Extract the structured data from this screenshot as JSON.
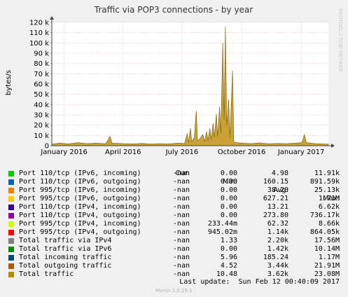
{
  "chart_data": {
    "type": "area",
    "title": "Traffic via POP3 connections - by year",
    "ylabel": "bytes/s",
    "watermark": "RRDTOOL / TOBI OETIKER",
    "ylim": [
      0,
      120000
    ],
    "y_ticks": [
      {
        "value": 0,
        "label": "0"
      },
      {
        "value": 10000,
        "label": "10 k"
      },
      {
        "value": 20000,
        "label": "20 k"
      },
      {
        "value": 30000,
        "label": "30 k"
      },
      {
        "value": 40000,
        "label": "40 k"
      },
      {
        "value": 50000,
        "label": "50 k"
      },
      {
        "value": 60000,
        "label": "60 k"
      },
      {
        "value": 70000,
        "label": "70 k"
      },
      {
        "value": 80000,
        "label": "80 k"
      },
      {
        "value": 90000,
        "label": "90 k"
      },
      {
        "value": 100000,
        "label": "100 k"
      },
      {
        "value": 110000,
        "label": "110 k"
      },
      {
        "value": 120000,
        "label": "120 k"
      }
    ],
    "xlim": [
      "2015-12-13",
      "2017-02-12"
    ],
    "x_ticks": [
      {
        "value": "2016-01-01",
        "label": "January 2016"
      },
      {
        "value": "2016-04-01",
        "label": "April 2016"
      },
      {
        "value": "2016-07-01",
        "label": "July 2016"
      },
      {
        "value": "2016-10-01",
        "label": "October 2016"
      },
      {
        "value": "2017-01-01",
        "label": "January 2017"
      }
    ],
    "grid": true,
    "series": [
      {
        "name": "Total traffic",
        "color": "#c09010",
        "points": [
          [
            "2015-12-13",
            1500
          ],
          [
            "2015-12-25",
            2500
          ],
          [
            "2016-01-08",
            1800
          ],
          [
            "2016-01-22",
            3000
          ],
          [
            "2016-02-05",
            2000
          ],
          [
            "2016-02-19",
            2500
          ],
          [
            "2016-03-05",
            1900
          ],
          [
            "2016-03-12",
            9000
          ],
          [
            "2016-03-15",
            2500
          ],
          [
            "2016-04-02",
            2000
          ],
          [
            "2016-04-16",
            1800
          ],
          [
            "2016-04-30",
            2200
          ],
          [
            "2016-05-14",
            1700
          ],
          [
            "2016-05-28",
            2000
          ],
          [
            "2016-06-11",
            1800
          ],
          [
            "2016-06-25",
            2500
          ],
          [
            "2016-07-05",
            2200
          ],
          [
            "2016-07-09",
            12000
          ],
          [
            "2016-07-11",
            3000
          ],
          [
            "2016-07-14",
            17000
          ],
          [
            "2016-07-16",
            4000
          ],
          [
            "2016-07-20",
            8000
          ],
          [
            "2016-07-23",
            34000
          ],
          [
            "2016-07-25",
            5000
          ],
          [
            "2016-07-29",
            7000
          ],
          [
            "2016-08-02",
            11000
          ],
          [
            "2016-08-05",
            4000
          ],
          [
            "2016-08-08",
            14000
          ],
          [
            "2016-08-10",
            5000
          ],
          [
            "2016-08-13",
            17000
          ],
          [
            "2016-08-15",
            6000
          ],
          [
            "2016-08-18",
            22000
          ],
          [
            "2016-08-20",
            8000
          ],
          [
            "2016-08-23",
            31000
          ],
          [
            "2016-08-25",
            9000
          ],
          [
            "2016-08-28",
            38000
          ],
          [
            "2016-08-30",
            12000
          ],
          [
            "2016-09-02",
            100000
          ],
          [
            "2016-09-04",
            25000
          ],
          [
            "2016-09-06",
            116000
          ],
          [
            "2016-09-08",
            20000
          ],
          [
            "2016-09-11",
            45000
          ],
          [
            "2016-09-13",
            8000
          ],
          [
            "2016-09-17",
            73000
          ],
          [
            "2016-09-19",
            4000
          ],
          [
            "2016-09-23",
            3000
          ],
          [
            "2016-10-01",
            2500
          ],
          [
            "2016-10-15",
            2000
          ],
          [
            "2016-10-29",
            2800
          ],
          [
            "2016-11-12",
            1900
          ],
          [
            "2016-11-26",
            2200
          ],
          [
            "2016-12-10",
            2000
          ],
          [
            "2016-12-24",
            2500
          ],
          [
            "2017-01-02",
            3000
          ],
          [
            "2017-01-06",
            11000
          ],
          [
            "2017-01-09",
            3000
          ],
          [
            "2017-01-23",
            2000
          ],
          [
            "2017-02-12",
            1500
          ]
        ]
      }
    ]
  },
  "legend": {
    "headers": {
      "cur": "Cur:",
      "min": "Min:",
      "avg": "Avg:",
      "max": "Max:"
    },
    "rows": [
      {
        "name": "Port 110/tcp (IPv6, incoming)",
        "color": "#00cc00",
        "cur": "-nan",
        "min": "0.00",
        "avg": "4.98",
        "max": "11.91k"
      },
      {
        "name": "Port 110/tcp (IPv6, outgoing)",
        "color": "#0066b3",
        "cur": "-nan",
        "min": "0.00",
        "avg": "160.15",
        "max": "891.59k"
      },
      {
        "name": "Port 995/tcp (IPv6, incoming)",
        "color": "#ff8000",
        "cur": "-nan",
        "min": "0.00",
        "avg": "38.20",
        "max": "25.13k"
      },
      {
        "name": "Port 995/tcp (IPv6, outgoing)",
        "color": "#ffcc00",
        "cur": "-nan",
        "min": "0.00",
        "avg": "627.21",
        "max": "1.71M"
      },
      {
        "name": "Port 110/tcp (IPv4, incoming)",
        "color": "#330099",
        "cur": "-nan",
        "min": "0.00",
        "avg": "13.21",
        "max": "6.62k"
      },
      {
        "name": "Port 110/tcp (IPv4, outgoing)",
        "color": "#990099",
        "cur": "-nan",
        "min": "0.00",
        "avg": "273.80",
        "max": "736.17k"
      },
      {
        "name": "Port 995/tcp (IPv4, incoming)",
        "color": "#ccff00",
        "cur": "-nan",
        "min": "233.44m",
        "avg": "62.32",
        "max": "8.66k"
      },
      {
        "name": "Port 995/tcp (IPv4, outgoing)",
        "color": "#ff0000",
        "cur": "-nan",
        "min": "945.02m",
        "avg": "1.14k",
        "max": "864.05k"
      },
      {
        "name": "Total traffic via IPv4",
        "color": "#808080",
        "cur": "-nan",
        "min": "1.33",
        "avg": "2.20k",
        "max": "17.56M"
      },
      {
        "name": "Total traffic via IPv6",
        "color": "#008f00",
        "cur": "-nan",
        "min": "0.00",
        "avg": "1.42k",
        "max": "10.14M"
      },
      {
        "name": "Total incoming traffic",
        "color": "#00487d",
        "cur": "-nan",
        "min": "5.96",
        "avg": "185.24",
        "max": "1.17M"
      },
      {
        "name": "Total outgoing traffic",
        "color": "#b35a00",
        "cur": "-nan",
        "min": "4.52",
        "avg": "3.44k",
        "max": "21.91M"
      },
      {
        "name": "Total traffic",
        "color": "#b38f00",
        "cur": "-nan",
        "min": "10.48",
        "avg": "3.62k",
        "max": "23.08M"
      }
    ]
  },
  "footer": {
    "last_update": "Last update:  Sun Feb 12 00:40:09 2017",
    "version": "Munin 2.0.25-1"
  }
}
